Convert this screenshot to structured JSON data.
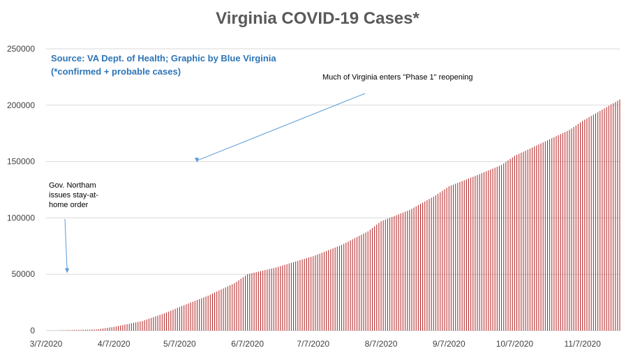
{
  "chart_data": {
    "type": "bar",
    "title": "Virginia COVID-19 Cases*",
    "xlabel": "",
    "ylabel": "",
    "ylim": [
      0,
      250000
    ],
    "yticks": [
      0,
      50000,
      100000,
      150000,
      200000,
      250000
    ],
    "xticks": [
      "3/7/2020",
      "4/7/2020",
      "5/7/2020",
      "6/7/2020",
      "7/7/2020",
      "8/7/2020",
      "9/7/2020",
      "10/7/2020",
      "11/7/2020"
    ],
    "x_start": "3/7/2020",
    "x_end": "11/24/2020",
    "grid": true,
    "legend": "none",
    "bar_color": "#b21c1c",
    "anchors": [
      {
        "date": "3/7/2020",
        "value": 0
      },
      {
        "date": "3/30/2020",
        "value": 1000
      },
      {
        "date": "4/7/2020",
        "value": 3300
      },
      {
        "date": "4/20/2020",
        "value": 8500
      },
      {
        "date": "5/1/2020",
        "value": 16000
      },
      {
        "date": "5/7/2020",
        "value": 21000
      },
      {
        "date": "5/20/2020",
        "value": 31000
      },
      {
        "date": "6/1/2020",
        "value": 42000
      },
      {
        "date": "6/7/2020",
        "value": 50000
      },
      {
        "date": "6/20/2020",
        "value": 56000
      },
      {
        "date": "7/1/2020",
        "value": 62500
      },
      {
        "date": "7/7/2020",
        "value": 66000
      },
      {
        "date": "7/20/2020",
        "value": 76000
      },
      {
        "date": "8/1/2020",
        "value": 88000
      },
      {
        "date": "8/7/2020",
        "value": 97000
      },
      {
        "date": "8/20/2020",
        "value": 107000
      },
      {
        "date": "9/1/2020",
        "value": 120000
      },
      {
        "date": "9/7/2020",
        "value": 128000
      },
      {
        "date": "9/20/2020",
        "value": 138000
      },
      {
        "date": "10/1/2020",
        "value": 147000
      },
      {
        "date": "10/7/2020",
        "value": 155000
      },
      {
        "date": "10/20/2020",
        "value": 167000
      },
      {
        "date": "11/1/2020",
        "value": 178000
      },
      {
        "date": "11/7/2020",
        "value": 186000
      },
      {
        "date": "11/24/2020",
        "value": 205000
      }
    ],
    "annotations": [
      {
        "lines": [
          "Source: VA Dept. of Health; Graphic by Blue Virginia",
          "(*confirmed + probable cases)"
        ]
      },
      {
        "lines": [
          "Much of Virginia enters \"Phase 1\" reopening"
        ],
        "date": "5/15/2020",
        "value": 149000
      },
      {
        "lines": [
          "Gov. Northam",
          "issues stay-at-",
          "home order"
        ],
        "date": "3/30/2020",
        "value": 51000
      }
    ]
  }
}
